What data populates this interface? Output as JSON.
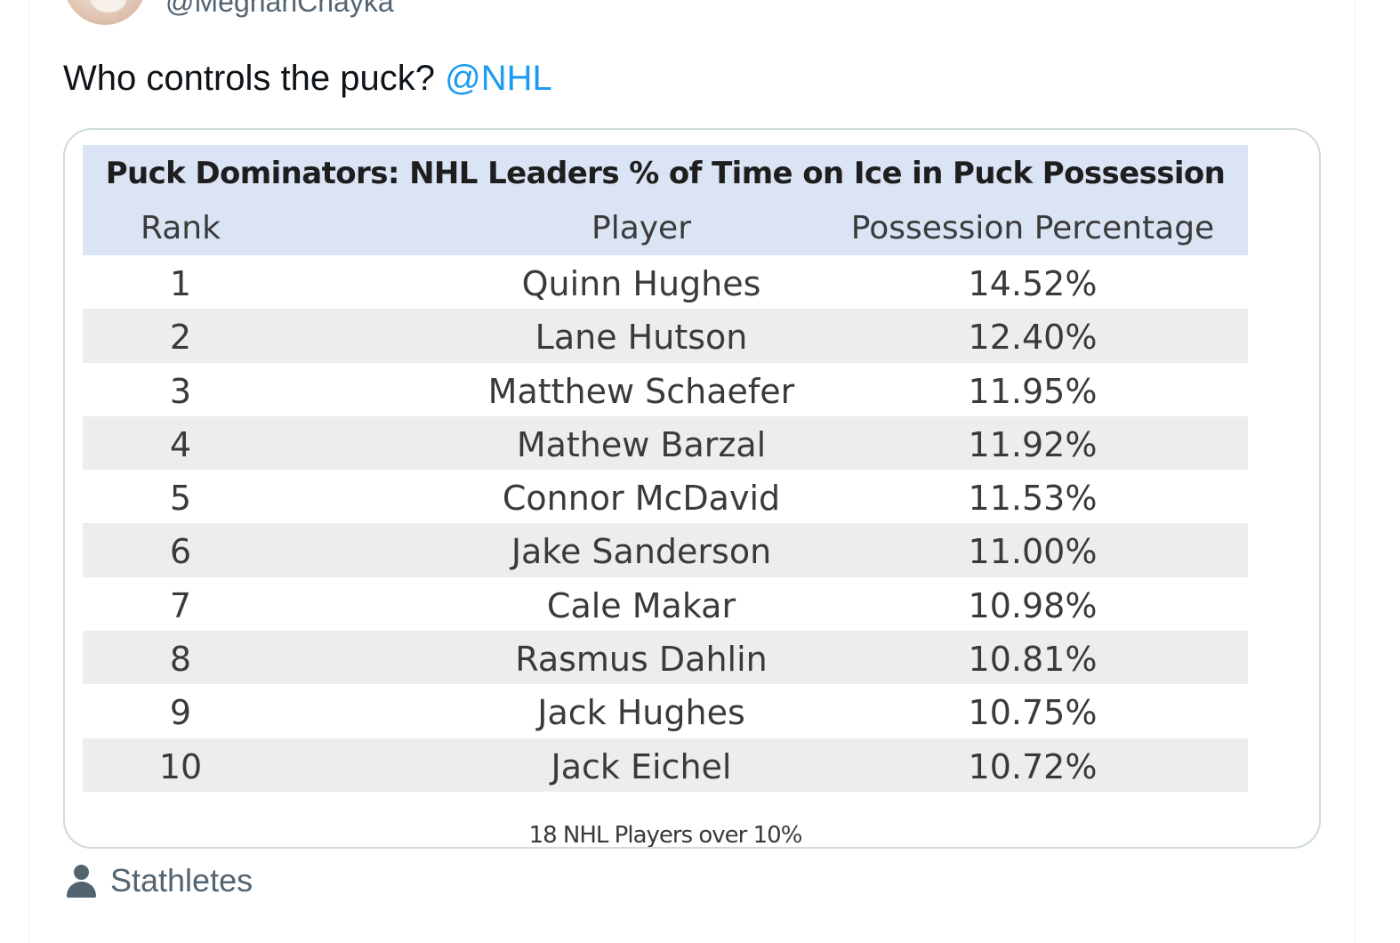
{
  "post": {
    "handle": "@MeghanChayka",
    "text": "Who controls the puck?",
    "mention": "@NHL",
    "source_label": "Stathletes"
  },
  "table_image": {
    "title": "Puck Dominators: NHL Leaders % of Time on Ice in Puck Possession",
    "columns": [
      "Rank",
      "Player",
      "Possession Percentage"
    ],
    "rows": [
      {
        "rank": "1",
        "player": "Quinn Hughes",
        "pct": "14.52%"
      },
      {
        "rank": "2",
        "player": "Lane Hutson",
        "pct": "12.40%"
      },
      {
        "rank": "3",
        "player": "Matthew Schaefer",
        "pct": "11.95%"
      },
      {
        "rank": "4",
        "player": "Mathew Barzal",
        "pct": "11.92%"
      },
      {
        "rank": "5",
        "player": "Connor McDavid",
        "pct": "11.53%"
      },
      {
        "rank": "6",
        "player": "Jake Sanderson",
        "pct": "11.00%"
      },
      {
        "rank": "7",
        "player": "Cale Makar",
        "pct": "10.98%"
      },
      {
        "rank": "8",
        "player": "Rasmus Dahlin",
        "pct": "10.81%"
      },
      {
        "rank": "9",
        "player": "Jack Hughes",
        "pct": "10.75%"
      },
      {
        "rank": "10",
        "player": "Jack Eichel",
        "pct": "10.72%"
      }
    ],
    "footer": "18 NHL Players over 10%"
  },
  "icons": {
    "source": "person-icon"
  },
  "colors": {
    "mention": "#1d9bf0",
    "header_band": "#dae4f4",
    "alt_row": "#ededed",
    "secondary_text": "#536471"
  }
}
